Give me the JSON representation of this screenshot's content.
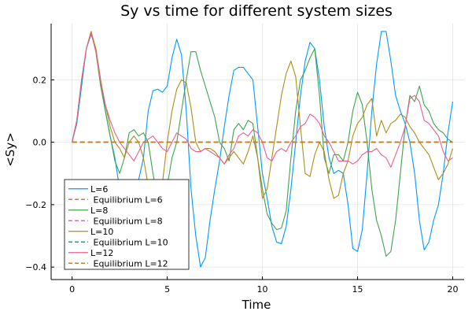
{
  "chart_data": {
    "type": "line",
    "title": "Sy vs time for different system sizes",
    "xlabel": "Time",
    "ylabel": "<Sy>",
    "xlim": [
      -1.1,
      20.6
    ],
    "ylim": [
      -0.44,
      0.38
    ],
    "xticks": [
      0,
      5,
      10,
      15,
      20
    ],
    "yticks": [
      -0.4,
      -0.2,
      0.0,
      0.2
    ],
    "ytick_labels": [
      "−0.4",
      "−0.2",
      "0.0",
      "0.2"
    ],
    "grid": true,
    "legend_position": "bottom-left",
    "series": [
      {
        "name": "L=6",
        "color": "#009AFA",
        "dash": false,
        "x": [
          0,
          0.25,
          0.5,
          0.75,
          1,
          1.25,
          1.5,
          1.75,
          2,
          2.25,
          2.5,
          2.75,
          3,
          3.25,
          3.5,
          3.75,
          4,
          4.25,
          4.5,
          4.75,
          5,
          5.25,
          5.5,
          5.75,
          6,
          6.25,
          6.5,
          6.75,
          7,
          7.25,
          7.5,
          7.75,
          8,
          8.25,
          8.5,
          8.75,
          9,
          9.25,
          9.5,
          9.75,
          10,
          10.25,
          10.5,
          10.75,
          11,
          11.25,
          11.5,
          11.75,
          12,
          12.25,
          12.5,
          12.75,
          13,
          13.25,
          13.5,
          13.75,
          14,
          14.25,
          14.5,
          14.75,
          15,
          15.25,
          15.5,
          15.75,
          16,
          16.25,
          16.5,
          16.75,
          17,
          17.25,
          17.5,
          17.75,
          18,
          18.25,
          18.5,
          18.75,
          19,
          19.25,
          19.5,
          19.75,
          20
        ],
        "y": [
          0,
          0.06,
          0.18,
          0.3,
          0.345,
          0.3,
          0.2,
          0.1,
          0.02,
          -0.05,
          -0.15,
          -0.26,
          -0.32,
          -0.25,
          -0.12,
          -0.05,
          0.1,
          0.165,
          0.17,
          0.16,
          0.18,
          0.27,
          0.33,
          0.28,
          0.1,
          -0.15,
          -0.3,
          -0.4,
          -0.37,
          -0.25,
          -0.15,
          -0.06,
          0.05,
          0.15,
          0.23,
          0.24,
          0.24,
          0.22,
          0.2,
          0.05,
          -0.1,
          -0.18,
          -0.27,
          -0.32,
          -0.325,
          -0.27,
          -0.15,
          0.0,
          0.15,
          0.26,
          0.32,
          0.3,
          0.2,
          0.05,
          -0.05,
          -0.1,
          -0.09,
          -0.1,
          -0.2,
          -0.34,
          -0.35,
          -0.28,
          -0.1,
          0.1,
          0.25,
          0.355,
          0.355,
          0.26,
          0.15,
          0.1,
          0.06,
          0.0,
          -0.1,
          -0.25,
          -0.345,
          -0.32,
          -0.25,
          -0.2,
          -0.1,
          0.03,
          0.13
        ]
      },
      {
        "name": " Equilibrium L=6",
        "color": "#E26F46",
        "dash": true,
        "x": [
          0,
          20
        ],
        "y": [
          0,
          0
        ]
      },
      {
        "name": "L=8",
        "color": "#3DA44D",
        "dash": false,
        "x": [
          0,
          0.25,
          0.5,
          0.75,
          1,
          1.25,
          1.5,
          1.75,
          2,
          2.25,
          2.5,
          2.75,
          3,
          3.25,
          3.5,
          3.75,
          4,
          4.25,
          4.5,
          4.75,
          5,
          5.25,
          5.5,
          5.75,
          6,
          6.25,
          6.5,
          6.75,
          7,
          7.25,
          7.5,
          7.75,
          8,
          8.25,
          8.5,
          8.75,
          9,
          9.25,
          9.5,
          9.75,
          10,
          10.25,
          10.5,
          10.75,
          11,
          11.25,
          11.5,
          11.75,
          12,
          12.25,
          12.5,
          12.75,
          13,
          13.25,
          13.5,
          13.75,
          14,
          14.25,
          14.5,
          14.75,
          15,
          15.25,
          15.5,
          15.75,
          16,
          16.25,
          16.5,
          16.75,
          17,
          17.25,
          17.5,
          17.75,
          18,
          18.25,
          18.5,
          18.75,
          19,
          19.25,
          19.5,
          19.75,
          20
        ],
        "y": [
          0,
          0.07,
          0.2,
          0.3,
          0.355,
          0.29,
          0.18,
          0.1,
          0.02,
          -0.06,
          -0.1,
          -0.05,
          0.03,
          0.04,
          0.02,
          0.03,
          0.0,
          -0.1,
          -0.18,
          -0.2,
          -0.14,
          -0.05,
          0.0,
          0.1,
          0.2,
          0.29,
          0.29,
          0.23,
          0.18,
          0.13,
          0.08,
          0.0,
          -0.02,
          -0.06,
          0.04,
          0.06,
          0.04,
          0.07,
          0.06,
          -0.05,
          -0.15,
          -0.23,
          -0.26,
          -0.28,
          -0.275,
          -0.22,
          -0.05,
          0.1,
          0.2,
          0.23,
          0.27,
          0.3,
          0.15,
          -0.05,
          -0.1,
          -0.04,
          -0.04,
          -0.06,
          0.0,
          0.1,
          0.16,
          0.12,
          0.0,
          -0.15,
          -0.25,
          -0.3,
          -0.365,
          -0.35,
          -0.25,
          -0.1,
          0.05,
          0.15,
          0.13,
          0.18,
          0.12,
          0.1,
          0.06,
          0.04,
          0.03,
          0.01,
          0.0
        ]
      },
      {
        "name": " Equilibrium L=8",
        "color": "#C271D2",
        "dash": true,
        "x": [
          0,
          20
        ],
        "y": [
          0,
          0
        ]
      },
      {
        "name": "L=10",
        "color": "#AC8E18",
        "dash": false,
        "x": [
          0,
          0.25,
          0.5,
          0.75,
          1,
          1.25,
          1.5,
          1.75,
          2,
          2.25,
          2.5,
          2.75,
          3,
          3.25,
          3.5,
          3.75,
          4,
          4.25,
          4.5,
          4.75,
          5,
          5.25,
          5.5,
          5.75,
          6,
          6.25,
          6.5,
          6.75,
          7,
          7.25,
          7.5,
          7.75,
          8,
          8.25,
          8.5,
          8.75,
          9,
          9.25,
          9.5,
          9.75,
          10,
          10.25,
          10.5,
          10.75,
          11,
          11.25,
          11.5,
          11.75,
          12,
          12.25,
          12.5,
          12.75,
          13,
          13.25,
          13.5,
          13.75,
          14,
          14.25,
          14.5,
          14.75,
          15,
          15.25,
          15.5,
          15.75,
          16,
          16.25,
          16.5,
          16.75,
          17,
          17.25,
          17.5,
          17.75,
          18,
          18.25,
          18.5,
          18.75,
          19,
          19.25,
          19.5,
          19.75,
          20
        ],
        "y": [
          0,
          0.07,
          0.2,
          0.3,
          0.355,
          0.3,
          0.2,
          0.12,
          0.05,
          0.0,
          -0.02,
          -0.05,
          0.0,
          0.02,
          0.0,
          -0.05,
          -0.14,
          -0.12,
          -0.15,
          -0.13,
          0.0,
          0.1,
          0.17,
          0.2,
          0.19,
          0.11,
          0.0,
          -0.03,
          -0.02,
          -0.02,
          -0.03,
          -0.05,
          -0.07,
          -0.05,
          -0.03,
          -0.05,
          -0.07,
          -0.03,
          0.02,
          -0.05,
          -0.18,
          -0.15,
          -0.05,
          0.05,
          0.15,
          0.22,
          0.26,
          0.21,
          0.05,
          -0.1,
          -0.11,
          -0.04,
          0.0,
          -0.03,
          -0.12,
          -0.18,
          -0.17,
          -0.1,
          -0.06,
          0.02,
          0.06,
          0.08,
          0.12,
          0.14,
          0.02,
          0.07,
          0.03,
          0.06,
          0.07,
          0.09,
          0.08,
          0.05,
          0.03,
          0.0,
          -0.02,
          -0.04,
          -0.08,
          -0.12,
          -0.1,
          -0.07,
          -0.02
        ]
      },
      {
        "name": " Equilibrium L=10",
        "color": "#00A9AD",
        "dash": true,
        "x": [
          0,
          20
        ],
        "y": [
          0,
          0
        ]
      },
      {
        "name": "L=12",
        "color": "#ED5D92",
        "dash": false,
        "x": [
          0,
          0.25,
          0.5,
          0.75,
          1,
          1.25,
          1.5,
          1.75,
          2,
          2.25,
          2.5,
          2.75,
          3,
          3.25,
          3.5,
          3.75,
          4,
          4.25,
          4.5,
          4.75,
          5,
          5.25,
          5.5,
          5.75,
          6,
          6.25,
          6.5,
          6.75,
          7,
          7.25,
          7.5,
          7.75,
          8,
          8.25,
          8.5,
          8.75,
          9,
          9.25,
          9.5,
          9.75,
          10,
          10.25,
          10.5,
          10.75,
          11,
          11.25,
          11.5,
          11.75,
          12,
          12.25,
          12.5,
          12.75,
          13,
          13.25,
          13.5,
          13.75,
          14,
          14.25,
          14.5,
          14.75,
          15,
          15.25,
          15.5,
          15.75,
          16,
          16.25,
          16.5,
          16.75,
          17,
          17.25,
          17.5,
          17.75,
          18,
          18.25,
          18.5,
          18.75,
          19,
          19.25,
          19.5,
          19.75,
          20
        ],
        "y": [
          0,
          0.07,
          0.2,
          0.3,
          0.35,
          0.29,
          0.19,
          0.12,
          0.07,
          0.03,
          0.0,
          -0.02,
          -0.04,
          -0.06,
          -0.03,
          0.0,
          0.01,
          0.02,
          0.0,
          -0.02,
          -0.03,
          0.0,
          0.03,
          0.02,
          0.01,
          -0.02,
          -0.03,
          -0.03,
          -0.02,
          -0.03,
          -0.04,
          -0.05,
          -0.07,
          -0.04,
          -0.02,
          0.02,
          0.03,
          0.02,
          0.04,
          0.03,
          0.0,
          -0.05,
          -0.06,
          -0.03,
          -0.02,
          -0.03,
          0.0,
          0.02,
          0.05,
          0.06,
          0.09,
          0.08,
          0.06,
          0.02,
          0.0,
          -0.03,
          -0.06,
          -0.06,
          -0.06,
          -0.07,
          -0.06,
          -0.04,
          -0.03,
          -0.03,
          -0.02,
          -0.04,
          -0.05,
          -0.08,
          -0.04,
          0.0,
          0.05,
          0.14,
          0.15,
          0.13,
          0.07,
          0.06,
          0.04,
          0.02,
          -0.03,
          -0.06,
          -0.05
        ]
      },
      {
        "name": " Equilibrium L=12",
        "color": "#C68225",
        "dash": true,
        "x": [
          0,
          20
        ],
        "y": [
          0,
          0
        ]
      }
    ]
  }
}
